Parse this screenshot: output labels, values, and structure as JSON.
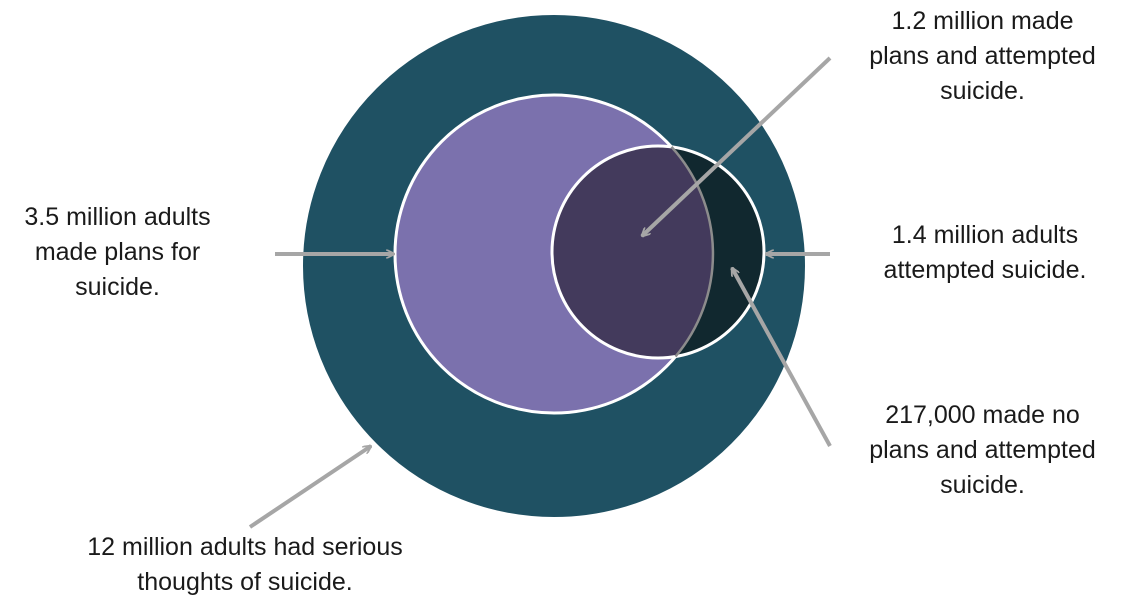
{
  "colors": {
    "outer_circle": "#1f5163",
    "plans_circle": "#7b71ad",
    "overlap_region": "#433a5c",
    "attempt_only_region": "#11282f",
    "outline": "#ffffff",
    "arrow": "#a6a6a6",
    "text": "#1a1a1a"
  },
  "annotations": {
    "plans": {
      "lines": [
        "3.5 million  adults",
        "made plans  for",
        "suicide."
      ]
    },
    "thoughts": {
      "lines": [
        "12 million  adults had serious",
        "thoughts  of suicide."
      ]
    },
    "plans_attempted": {
      "lines": [
        "1.2 million  made",
        "plans and attempted",
        "suicide."
      ]
    },
    "attempted": {
      "lines": [
        "1.4 million  adults",
        "attempted suicide."
      ]
    },
    "noplans_attempted": {
      "lines": [
        "217,000 made no",
        "plans and attempted",
        "suicide."
      ]
    }
  }
}
